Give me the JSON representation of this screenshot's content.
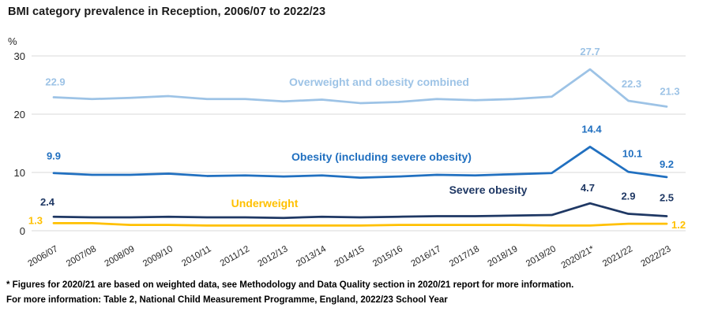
{
  "title": "BMI category prevalence in Reception, 2006/07 to 2022/23",
  "footnotes": [
    "* Figures for 2020/21 are based on weighted data, see Methodology and Data Quality section in 2020/21 report for more information.",
    "For more information: Table 2, National Child Measurement Programme, England, 2022/23 School Year"
  ],
  "chart_data": {
    "type": "line",
    "title": "BMI category prevalence in Reception, 2006/07 to 2022/23",
    "xlabel": "",
    "ylabel": "%",
    "ylim": [
      0,
      30
    ],
    "y_ticks": [
      30,
      20,
      10,
      0
    ],
    "grid": true,
    "legend_position": "inline-series-labels",
    "gridline_color": "#D9D9D9",
    "categories": [
      "2006/07",
      "2007/08",
      "2008/09",
      "2009/10",
      "2010/11",
      "2011/12",
      "2012/13",
      "2013/14",
      "2014/15",
      "2015/16",
      "2016/17",
      "2017/18",
      "2018/19",
      "2019/20",
      "2020/21*",
      "2021/22",
      "2022/23"
    ],
    "series": [
      {
        "name": "Overweight and obesity combined",
        "color": "#9DC3E6",
        "values": [
          22.9,
          22.6,
          22.8,
          23.1,
          22.6,
          22.6,
          22.2,
          22.5,
          21.9,
          22.1,
          22.6,
          22.4,
          22.6,
          23.0,
          27.7,
          22.3,
          21.3
        ],
        "point_labels": {
          "0": "22.9",
          "14": "27.7",
          "15": "22.3",
          "16": "21.3"
        }
      },
      {
        "name": "Obesity (including severe obesity)",
        "color": "#2170C0",
        "values": [
          9.9,
          9.6,
          9.6,
          9.8,
          9.4,
          9.5,
          9.3,
          9.5,
          9.1,
          9.3,
          9.6,
          9.5,
          9.7,
          9.9,
          14.4,
          10.1,
          9.2
        ],
        "point_labels": {
          "0": "9.9",
          "14": "14.4",
          "15": "10.1",
          "16": "9.2"
        }
      },
      {
        "name": "Severe obesity",
        "color": "#1F3864",
        "values": [
          2.4,
          2.3,
          2.3,
          2.4,
          2.3,
          2.3,
          2.2,
          2.4,
          2.3,
          2.4,
          2.5,
          2.5,
          2.6,
          2.7,
          4.7,
          2.9,
          2.5
        ],
        "point_labels": {
          "0": "2.4",
          "14": "4.7",
          "15": "2.9",
          "16": "2.5"
        }
      },
      {
        "name": "Underweight",
        "color": "#FFC000",
        "values": [
          1.3,
          1.3,
          1.0,
          1.0,
          0.9,
          0.9,
          0.9,
          0.9,
          0.9,
          1.0,
          1.0,
          1.0,
          1.0,
          0.9,
          0.9,
          1.2,
          1.2
        ],
        "point_labels": {
          "0": "1.3",
          "16": "1.2"
        }
      }
    ]
  }
}
